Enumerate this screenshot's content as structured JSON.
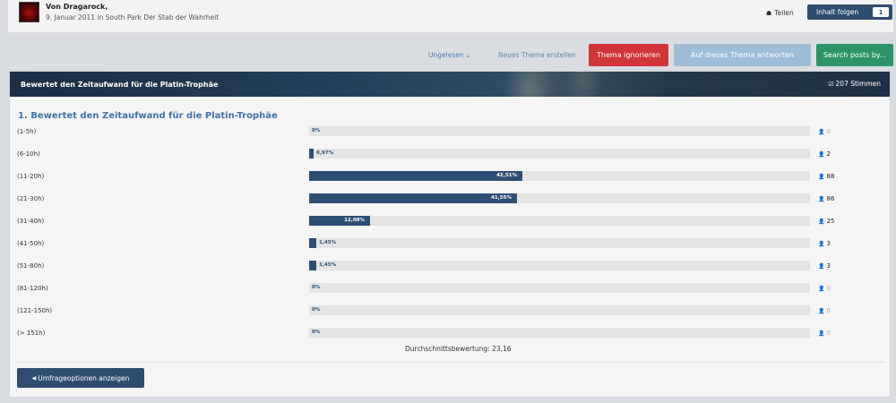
{
  "author": {
    "prefix": "Von",
    "name": "Dragarock,",
    "date": "9. Januar 2011",
    "in": "in",
    "forum": "South Park Der Stab der Wahrheit"
  },
  "header_actions": {
    "share_label": "Teilen",
    "follow_label": "Inhalt folgen",
    "follow_count": "1"
  },
  "actions": {
    "unread_label": "Ungelesen",
    "new_topic_label": "Neues Thema erstellen",
    "ignore_label": "Thema ignorieren",
    "reply_label": "Auf dieses Thema antworten",
    "search_label": "Search posts by..."
  },
  "poll": {
    "header_title": "Bewertet den Zeitaufwand für die Platin-Trophäe",
    "votes_label": "207 Stimmen",
    "question": "1. Bewertet den Zeitaufwand für die Platin-Trophäe",
    "options": [
      {
        "label": "(1-5h)",
        "pct_label": "0%",
        "pct": 0,
        "count": "0"
      },
      {
        "label": "(6-10h)",
        "pct_label": "0,97%",
        "pct": 0.97,
        "count": "2"
      },
      {
        "label": "(11-20h)",
        "pct_label": "42,51%",
        "pct": 42.51,
        "count": "88"
      },
      {
        "label": "(21-30h)",
        "pct_label": "41,55%",
        "pct": 41.55,
        "count": "86"
      },
      {
        "label": "(31-40h)",
        "pct_label": "12,08%",
        "pct": 12.08,
        "count": "25"
      },
      {
        "label": "(41-50h)",
        "pct_label": "1,45%",
        "pct": 1.45,
        "count": "3"
      },
      {
        "label": "(51-80h)",
        "pct_label": "1,45%",
        "pct": 1.45,
        "count": "3"
      },
      {
        "label": "(81-120h)",
        "pct_label": "0%",
        "pct": 0,
        "count": "0"
      },
      {
        "label": "(121-150h)",
        "pct_label": "0%",
        "pct": 0,
        "count": "0"
      },
      {
        "label": "(> 151h)",
        "pct_label": "0%",
        "pct": 0,
        "count": "0"
      }
    ],
    "average_label": "Durchschnittsbewertung: 23,16",
    "options_button_label": "Umfrageoptionen anzeigen"
  },
  "colors": {
    "primary": "#2f4d6e",
    "bar": "#2e4f74",
    "link": "#4a7cb1",
    "danger": "#d0353a",
    "reply": "#9fbcd7",
    "success": "#2d9467"
  },
  "icons": {
    "share": "share-icon",
    "unread": "arrow-down-icon",
    "votes": "checkbox-icon",
    "user": "user-icon",
    "caret": "caret-left-icon"
  }
}
